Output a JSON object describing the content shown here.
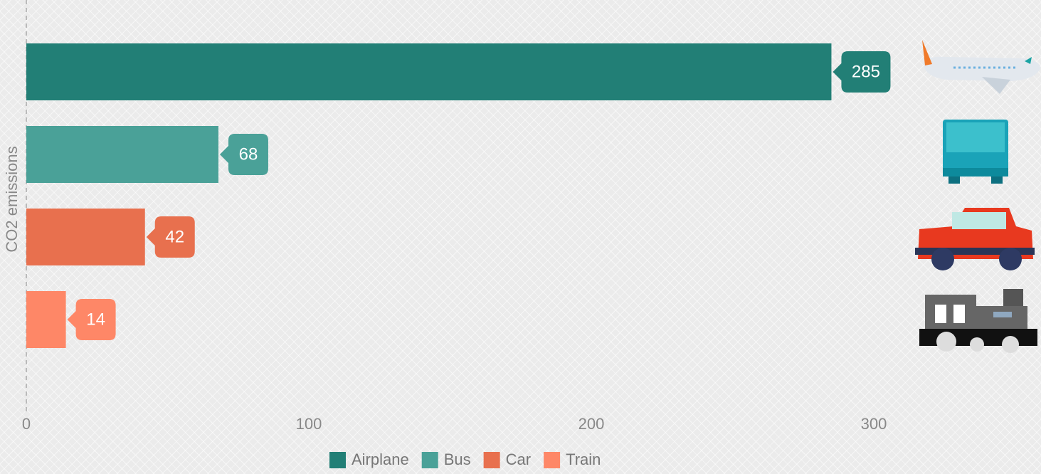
{
  "chart_data": {
    "type": "bar",
    "orientation": "horizontal",
    "y_label": "CO2 emissions",
    "series": [
      {
        "name": "Airplane",
        "color": "#227f76",
        "values": [
          285
        ]
      },
      {
        "name": "Bus",
        "color": "#4aa198",
        "values": [
          68
        ]
      },
      {
        "name": "Car",
        "color": "#e8704e",
        "values": [
          42
        ]
      },
      {
        "name": "Train",
        "color": "#fe8767",
        "values": [
          14
        ]
      }
    ],
    "xlim": [
      0,
      300
    ],
    "xticks": [
      0,
      100,
      200,
      300
    ],
    "data_labels": true,
    "legend": "bottom"
  }
}
